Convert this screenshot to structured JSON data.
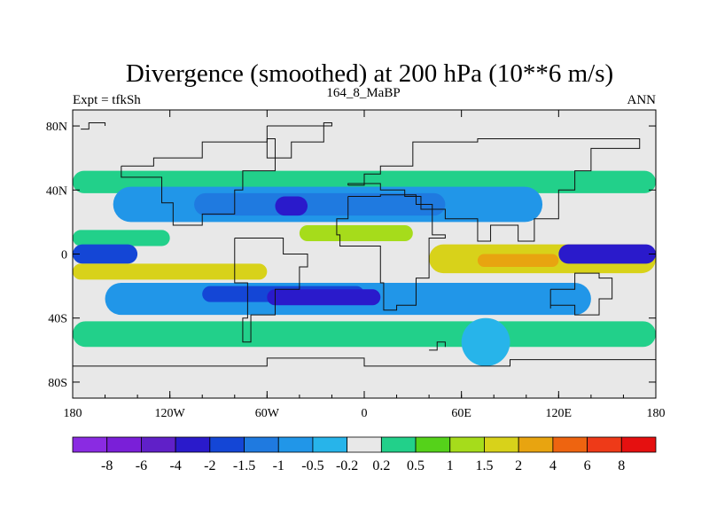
{
  "chart_data": {
    "type": "heatmap",
    "title": "Divergence (smoothed) at 200 hPa (10**6 m/s)",
    "subtitle_left": "Expt = tfkSh",
    "subtitle_center": "164_8_MaBP",
    "subtitle_right": "ANN",
    "x_ticks": [
      {
        "value": -180,
        "label": "180"
      },
      {
        "value": -120,
        "label": "120W"
      },
      {
        "value": -60,
        "label": "60W"
      },
      {
        "value": 0,
        "label": "0"
      },
      {
        "value": 60,
        "label": "60E"
      },
      {
        "value": 120,
        "label": "120E"
      },
      {
        "value": 180,
        "label": "180"
      }
    ],
    "y_ticks": [
      {
        "value": 80,
        "label": "80N"
      },
      {
        "value": 40,
        "label": "40N"
      },
      {
        "value": 0,
        "label": "0"
      },
      {
        "value": -40,
        "label": "40S"
      },
      {
        "value": -80,
        "label": "80S"
      }
    ],
    "xlim": [
      -180,
      180
    ],
    "ylim": [
      -90,
      90
    ],
    "colorbar": {
      "colors": [
        "#8a2be2",
        "#7a1fd8",
        "#6020c8",
        "#2a1acb",
        "#1446d6",
        "#1f7ae0",
        "#2196e8",
        "#27b4ea",
        "#e8e8e8",
        "#22d08a",
        "#55d21a",
        "#a6dc1b",
        "#d8d21a",
        "#e8a410",
        "#ee6410",
        "#ee3a18",
        "#e51010"
      ],
      "labels": [
        "-8",
        "-6",
        "-4",
        "-2",
        "-1.5",
        "-1",
        "-0.5",
        "-0.2",
        "0.2",
        "0.5",
        "1",
        "1.5",
        "2",
        "4",
        "6",
        "8"
      ]
    },
    "bands": [
      {
        "lon1": -180,
        "lon2": 180,
        "lat1": 38,
        "lat2": 52,
        "color": "#22d08a"
      },
      {
        "lon1": -155,
        "lon2": 110,
        "lat1": 20,
        "lat2": 42,
        "color": "#2196e8"
      },
      {
        "lon1": -105,
        "lon2": 50,
        "lat1": 24,
        "lat2": 38,
        "color": "#1f7ae0"
      },
      {
        "lon1": -55,
        "lon2": -35,
        "lat1": 24,
        "lat2": 36,
        "color": "#2a1acb"
      },
      {
        "lon1": -180,
        "lon2": -120,
        "lat1": 5,
        "lat2": 15,
        "color": "#22d08a"
      },
      {
        "lon1": -180,
        "lon2": -140,
        "lat1": -6,
        "lat2": 6,
        "color": "#1446d6"
      },
      {
        "lon1": -40,
        "lon2": 30,
        "lat1": 8,
        "lat2": 18,
        "color": "#a6dc1b"
      },
      {
        "lon1": 40,
        "lon2": 180,
        "lat1": -12,
        "lat2": 6,
        "color": "#d8d21a"
      },
      {
        "lon1": 70,
        "lon2": 120,
        "lat1": -8,
        "lat2": 0,
        "color": "#e8a410"
      },
      {
        "lon1": 120,
        "lon2": 180,
        "lat1": -6,
        "lat2": 6,
        "color": "#2a1acb"
      },
      {
        "lon1": -180,
        "lon2": -60,
        "lat1": -16,
        "lat2": -6,
        "color": "#d8d21a"
      },
      {
        "lon1": -160,
        "lon2": 140,
        "lat1": -38,
        "lat2": -18,
        "color": "#2196e8"
      },
      {
        "lon1": -100,
        "lon2": 0,
        "lat1": -30,
        "lat2": -20,
        "color": "#1446d6"
      },
      {
        "lon1": -60,
        "lon2": 10,
        "lat1": -32,
        "lat2": -22,
        "color": "#2a1acb"
      },
      {
        "lon1": -180,
        "lon2": 180,
        "lat1": -58,
        "lat2": -42,
        "color": "#22d08a"
      },
      {
        "lon1": 60,
        "lon2": 90,
        "lat1": -70,
        "lat2": -40,
        "color": "#27b4ea"
      }
    ]
  }
}
